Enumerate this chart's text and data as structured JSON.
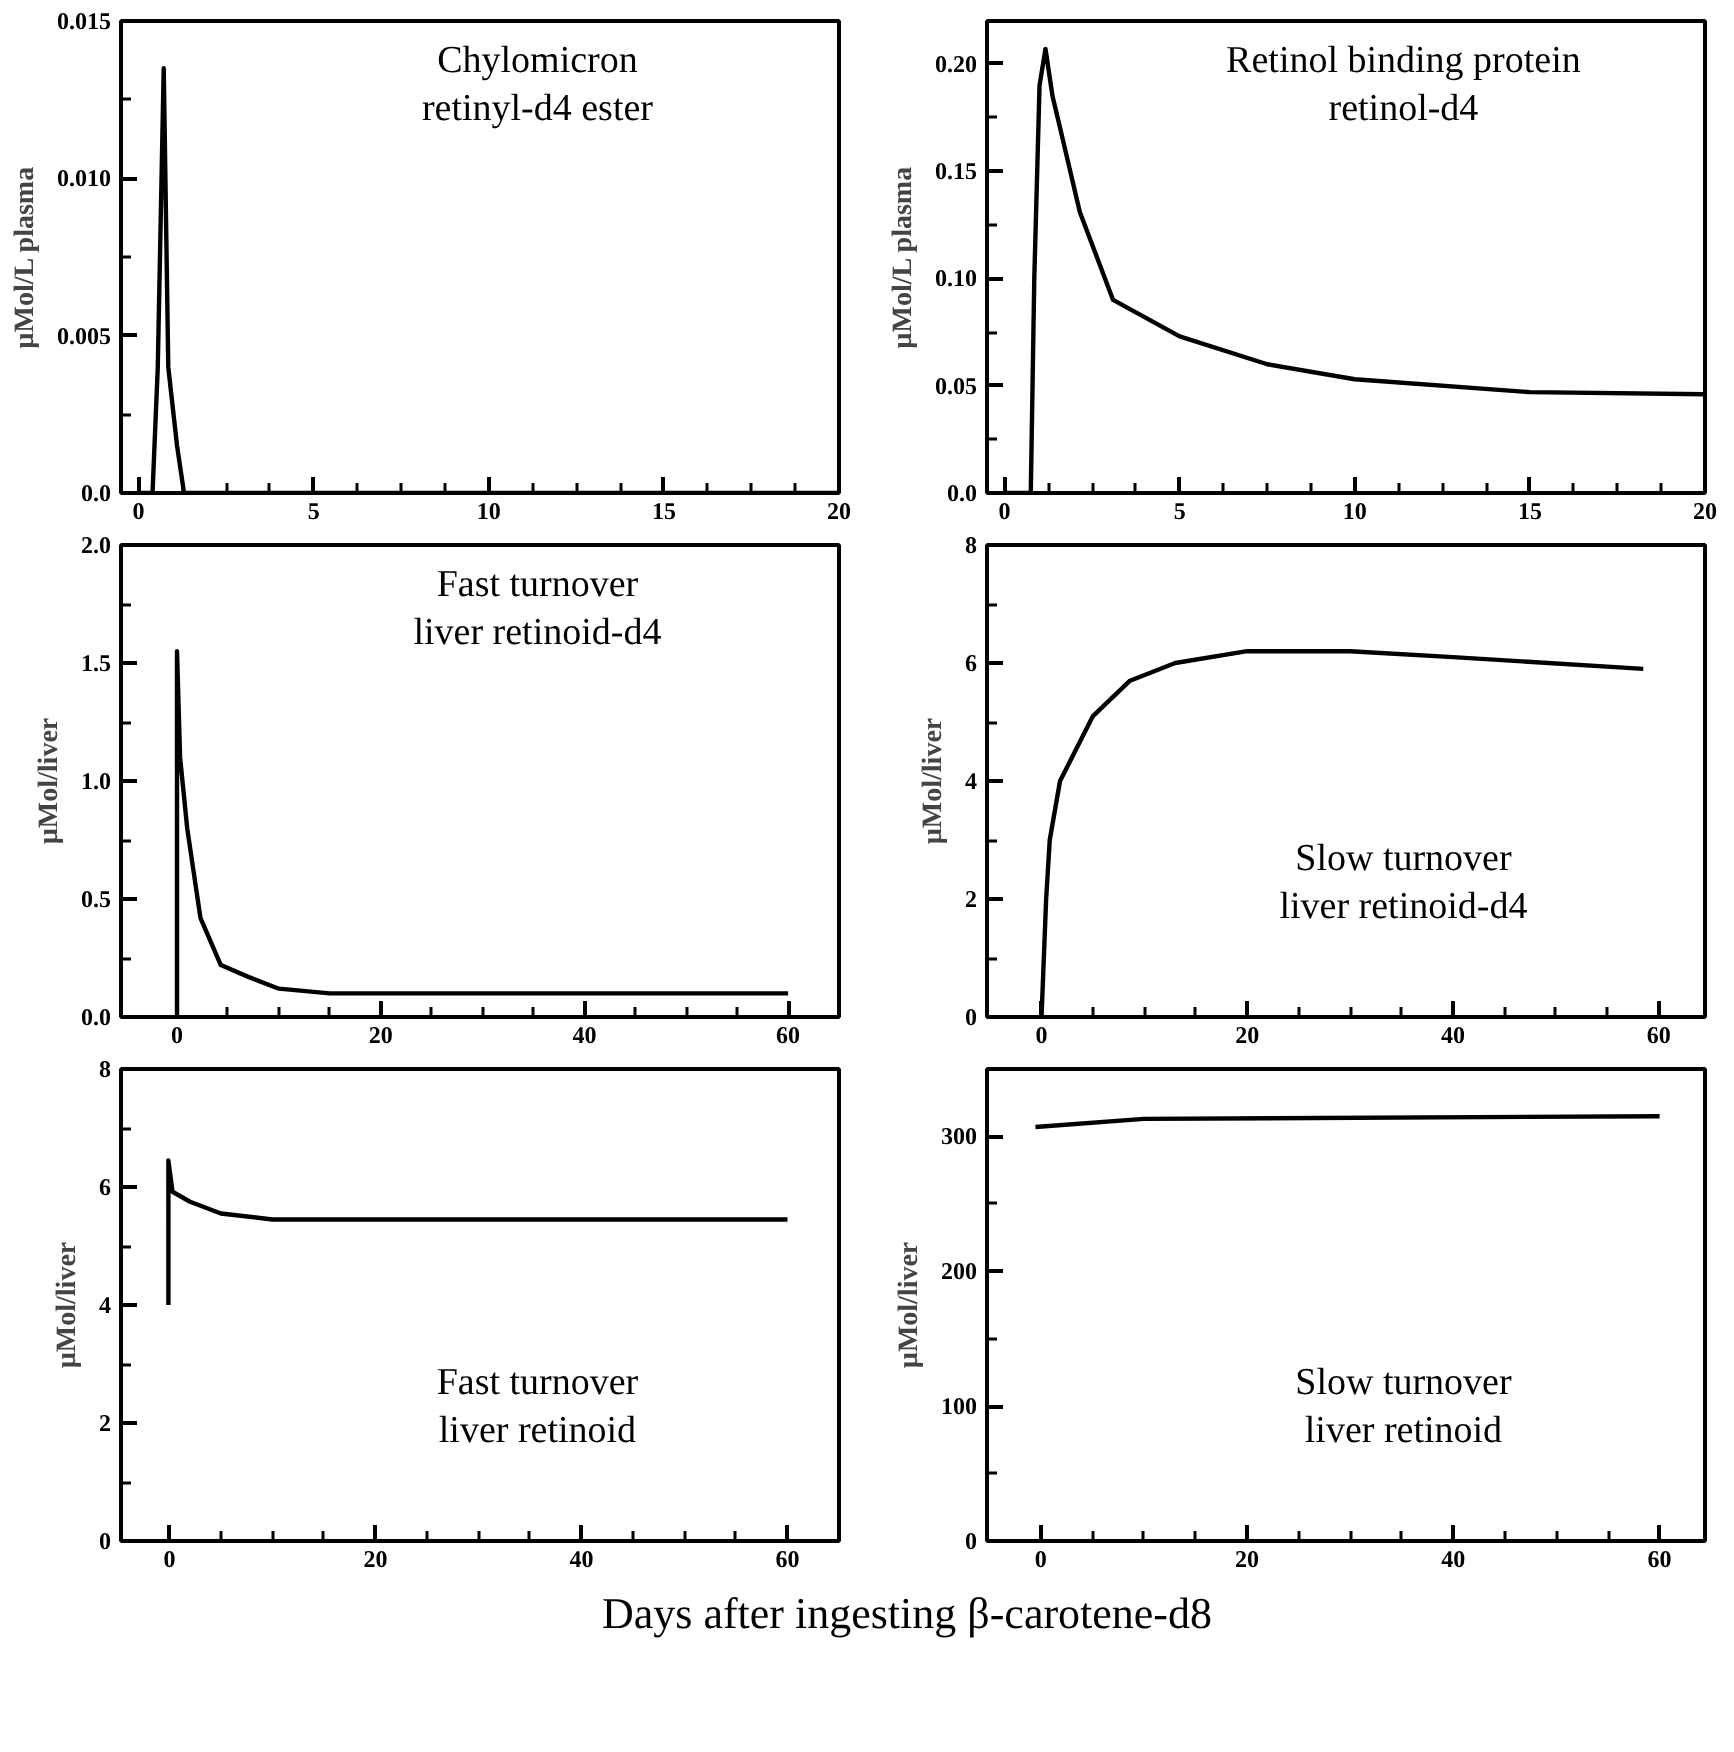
{
  "chart_data": [
    {
      "type": "line",
      "title": "Chylomicron\nretinyl-d4 ester",
      "ylabel": "µMol/L plasma",
      "xlim": [
        -0.5,
        20
      ],
      "ylim": [
        0,
        0.015
      ],
      "grid": false,
      "marker": "none",
      "line_style": "solid",
      "xticks": [
        0,
        {
          "value": 1.25,
          "label": null
        },
        {
          "value": 2.5,
          "label": null
        },
        {
          "value": 3.75,
          "label": null
        },
        5,
        {
          "value": 6.25,
          "label": null
        },
        {
          "value": 7.5,
          "label": null
        },
        {
          "value": 8.75,
          "label": null
        },
        10,
        {
          "value": 11.25,
          "label": null
        },
        {
          "value": 12.5,
          "label": null
        },
        {
          "value": 13.75,
          "label": null
        },
        15,
        {
          "value": 16.25,
          "label": null
        },
        {
          "value": 17.5,
          "label": null
        },
        {
          "value": 18.75,
          "label": null
        },
        20
      ],
      "yticks": [
        {
          "value": 0,
          "label": "0.0"
        },
        {
          "value": 0.0025,
          "label": null
        },
        {
          "value": 0.005,
          "label": "0.005"
        },
        {
          "value": 0.0075,
          "label": null
        },
        {
          "value": 0.01,
          "label": "0.010"
        },
        {
          "value": 0.0125,
          "label": null
        },
        {
          "value": 0.015,
          "label": "0.015"
        }
      ],
      "series": [
        {
          "color": "#000000",
          "x": [
            0,
            0.4,
            0.55,
            0.72,
            0.85,
            1.1,
            1.3,
            20
          ],
          "values": [
            0,
            0,
            0.004,
            0.0135,
            0.004,
            0.0015,
            0,
            0
          ]
        }
      ]
    },
    {
      "type": "line",
      "title": "Retinol binding protein\nretinol-d4",
      "ylabel": "µMol/L plasma",
      "xlim": [
        -0.5,
        20
      ],
      "ylim": [
        0,
        0.22
      ],
      "grid": false,
      "marker": "none",
      "line_style": "solid",
      "xticks": [
        0,
        {
          "value": 1.25,
          "label": null
        },
        {
          "value": 2.5,
          "label": null
        },
        {
          "value": 3.75,
          "label": null
        },
        5,
        {
          "value": 6.25,
          "label": null
        },
        {
          "value": 7.5,
          "label": null
        },
        {
          "value": 8.75,
          "label": null
        },
        10,
        {
          "value": 11.25,
          "label": null
        },
        {
          "value": 12.5,
          "label": null
        },
        {
          "value": 13.75,
          "label": null
        },
        15,
        {
          "value": 16.25,
          "label": null
        },
        {
          "value": 17.5,
          "label": null
        },
        {
          "value": 18.75,
          "label": null
        },
        20
      ],
      "yticks": [
        {
          "value": 0,
          "label": "0.0"
        },
        {
          "value": 0.025,
          "label": null
        },
        {
          "value": 0.05,
          "label": "0.05"
        },
        {
          "value": 0.075,
          "label": null
        },
        {
          "value": 0.1,
          "label": "0.10"
        },
        {
          "value": 0.125,
          "label": null
        },
        {
          "value": 0.15,
          "label": "0.15"
        },
        {
          "value": 0.175,
          "label": null
        },
        {
          "value": 0.2,
          "label": "0.20"
        }
      ],
      "series": [
        {
          "color": "#000000",
          "x": [
            0,
            0.75,
            0.85,
            1.0,
            1.17,
            1.37,
            1.56,
            2.15,
            3.1,
            5,
            7.5,
            10,
            15,
            20
          ],
          "values": [
            0,
            0,
            0.1,
            0.19,
            0.207,
            0.185,
            0.172,
            0.131,
            0.09,
            0.073,
            0.06,
            0.053,
            0.047,
            0.046
          ]
        }
      ]
    },
    {
      "type": "line",
      "title": "Fast turnover\nliver retinoid-d4",
      "ylabel": "µMol/liver",
      "xlim": [
        -5.5,
        65
      ],
      "ylim": [
        0,
        2.0
      ],
      "grid": false,
      "marker": "none",
      "line_style": "solid",
      "xticks": [
        0,
        {
          "value": 5,
          "label": null
        },
        {
          "value": 10,
          "label": null
        },
        {
          "value": 15,
          "label": null
        },
        20,
        {
          "value": 25,
          "label": null
        },
        {
          "value": 30,
          "label": null
        },
        {
          "value": 35,
          "label": null
        },
        40,
        {
          "value": 45,
          "label": null
        },
        {
          "value": 50,
          "label": null
        },
        {
          "value": 55,
          "label": null
        },
        60
      ],
      "yticks": [
        {
          "value": 0,
          "label": "0.0"
        },
        {
          "value": 0.25,
          "label": null
        },
        {
          "value": 0.5,
          "label": "0.5"
        },
        {
          "value": 0.75,
          "label": null
        },
        {
          "value": 1,
          "label": "1.0"
        },
        {
          "value": 1.25,
          "label": null
        },
        {
          "value": 1.5,
          "label": "1.5"
        },
        {
          "value": 1.75,
          "label": null
        },
        {
          "value": 2,
          "label": "2.0"
        }
      ],
      "series": [
        {
          "color": "#000000",
          "x": [
            0,
            0,
            0.3,
            1,
            2.3,
            4.3,
            7,
            10,
            15,
            60
          ],
          "values": [
            0,
            1.55,
            1.1,
            0.8,
            0.42,
            0.22,
            0.17,
            0.12,
            0.1,
            0.1
          ]
        }
      ]
    },
    {
      "type": "line",
      "title": "Slow turnover\nliver retinoid-d4",
      "ylabel": "µMol/liver",
      "xlim": [
        -5.3,
        64.5
      ],
      "ylim": [
        0,
        8
      ],
      "grid": false,
      "marker": "none",
      "line_style": "solid",
      "xticks": [
        0,
        {
          "value": 5,
          "label": null
        },
        {
          "value": 10,
          "label": null
        },
        {
          "value": 15,
          "label": null
        },
        20,
        {
          "value": 25,
          "label": null
        },
        {
          "value": 30,
          "label": null
        },
        {
          "value": 35,
          "label": null
        },
        40,
        {
          "value": 45,
          "label": null
        },
        {
          "value": 50,
          "label": null
        },
        {
          "value": 55,
          "label": null
        },
        60
      ],
      "yticks": [
        0,
        {
          "value": 1,
          "label": null
        },
        2,
        {
          "value": 3,
          "label": null
        },
        4,
        {
          "value": 5,
          "label": null
        },
        6,
        {
          "value": 7,
          "label": null
        },
        8
      ],
      "series": [
        {
          "color": "#000000",
          "x": [
            0,
            0.45,
            0.8,
            1.8,
            5,
            8.6,
            13,
            20,
            30,
            40,
            58.5
          ],
          "values": [
            0,
            2,
            3,
            4,
            5.1,
            5.7,
            6,
            6.2,
            6.2,
            6.1,
            5.9
          ]
        }
      ]
    },
    {
      "type": "line",
      "title": "Fast turnover\nliver retinoid",
      "ylabel": "µMol/liver",
      "xlim": [
        -4.7,
        65
      ],
      "ylim": [
        0,
        8
      ],
      "grid": false,
      "marker": "none",
      "line_style": "solid",
      "xticks": [
        0,
        {
          "value": 5,
          "label": null
        },
        {
          "value": 10,
          "label": null
        },
        {
          "value": 15,
          "label": null
        },
        20,
        {
          "value": 25,
          "label": null
        },
        {
          "value": 30,
          "label": null
        },
        {
          "value": 35,
          "label": null
        },
        40,
        {
          "value": 45,
          "label": null
        },
        {
          "value": 50,
          "label": null
        },
        {
          "value": 55,
          "label": null
        },
        60
      ],
      "yticks": [
        0,
        {
          "value": 1,
          "label": null
        },
        2,
        {
          "value": 3,
          "label": null
        },
        4,
        {
          "value": 5,
          "label": null
        },
        6,
        {
          "value": 7,
          "label": null
        },
        8
      ],
      "series": [
        {
          "color": "#000000",
          "x": [
            -0.1,
            -0.1,
            0.3,
            2,
            5,
            10,
            60
          ],
          "values": [
            4.0,
            6.45,
            5.92,
            5.75,
            5.55,
            5.45,
            5.45
          ]
        }
      ]
    },
    {
      "type": "line",
      "title": "Slow turnover\nliver retinoid",
      "ylabel": "µMol/liver",
      "xlabel": "Days after ingesting β-carotene-d8",
      "xlim": [
        -5.2,
        64.4
      ],
      "ylim": [
        0,
        350
      ],
      "grid": false,
      "marker": "none",
      "line_style": "solid",
      "xticks": [
        0,
        {
          "value": 5,
          "label": null
        },
        {
          "value": 10,
          "label": null
        },
        {
          "value": 15,
          "label": null
        },
        20,
        {
          "value": 25,
          "label": null
        },
        {
          "value": 30,
          "label": null
        },
        {
          "value": 35,
          "label": null
        },
        40,
        {
          "value": 45,
          "label": null
        },
        {
          "value": 50,
          "label": null
        },
        {
          "value": 55,
          "label": null
        },
        60
      ],
      "yticks": [
        0,
        {
          "value": 50,
          "label": null
        },
        100,
        {
          "value": 150,
          "label": null
        },
        200,
        {
          "value": 250,
          "label": null
        },
        300
      ],
      "series": [
        {
          "color": "#000000",
          "x": [
            -0.5,
            10,
            60
          ],
          "values": [
            307,
            313,
            315
          ]
        }
      ]
    }
  ]
}
